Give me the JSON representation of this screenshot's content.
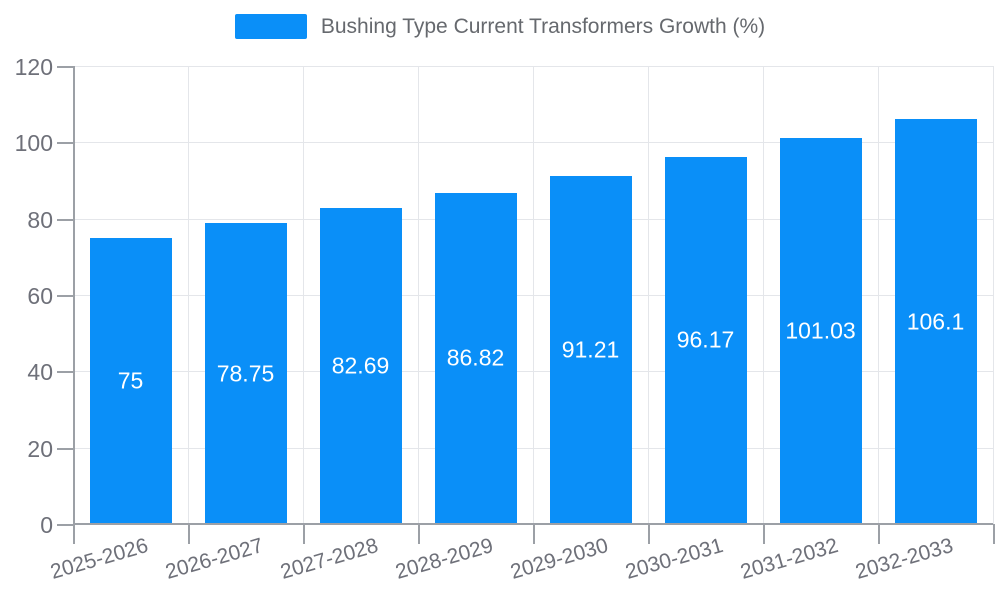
{
  "chart_data": {
    "type": "bar",
    "title": "Bushing Type Current Transformers Growth (%)",
    "categories": [
      "2025-2026",
      "2026-2027",
      "2027-2028",
      "2028-2029",
      "2029-2030",
      "2030-2031",
      "2031-2032",
      "2032-2033"
    ],
    "values": [
      75,
      78.75,
      82.69,
      86.82,
      91.21,
      96.17,
      101.03,
      106.1
    ],
    "value_labels": [
      "75",
      "78.75",
      "82.69",
      "86.82",
      "91.21",
      "96.17",
      "101.03",
      "106.1"
    ],
    "xlabel": "",
    "ylabel": "",
    "ylim": [
      0,
      120
    ],
    "yticks": [
      0,
      20,
      40,
      60,
      80,
      100,
      120
    ],
    "grid": true,
    "legend_position": "top-center",
    "bar_label_position": "inside-center",
    "colors": {
      "bar": "#0a8ff8",
      "bar_label": "#ffffff",
      "grid_line": "#e4e6ea",
      "axis_line": "#9ca0a6",
      "axis_text": "#6e7079",
      "legend_text": "#66696e"
    }
  }
}
